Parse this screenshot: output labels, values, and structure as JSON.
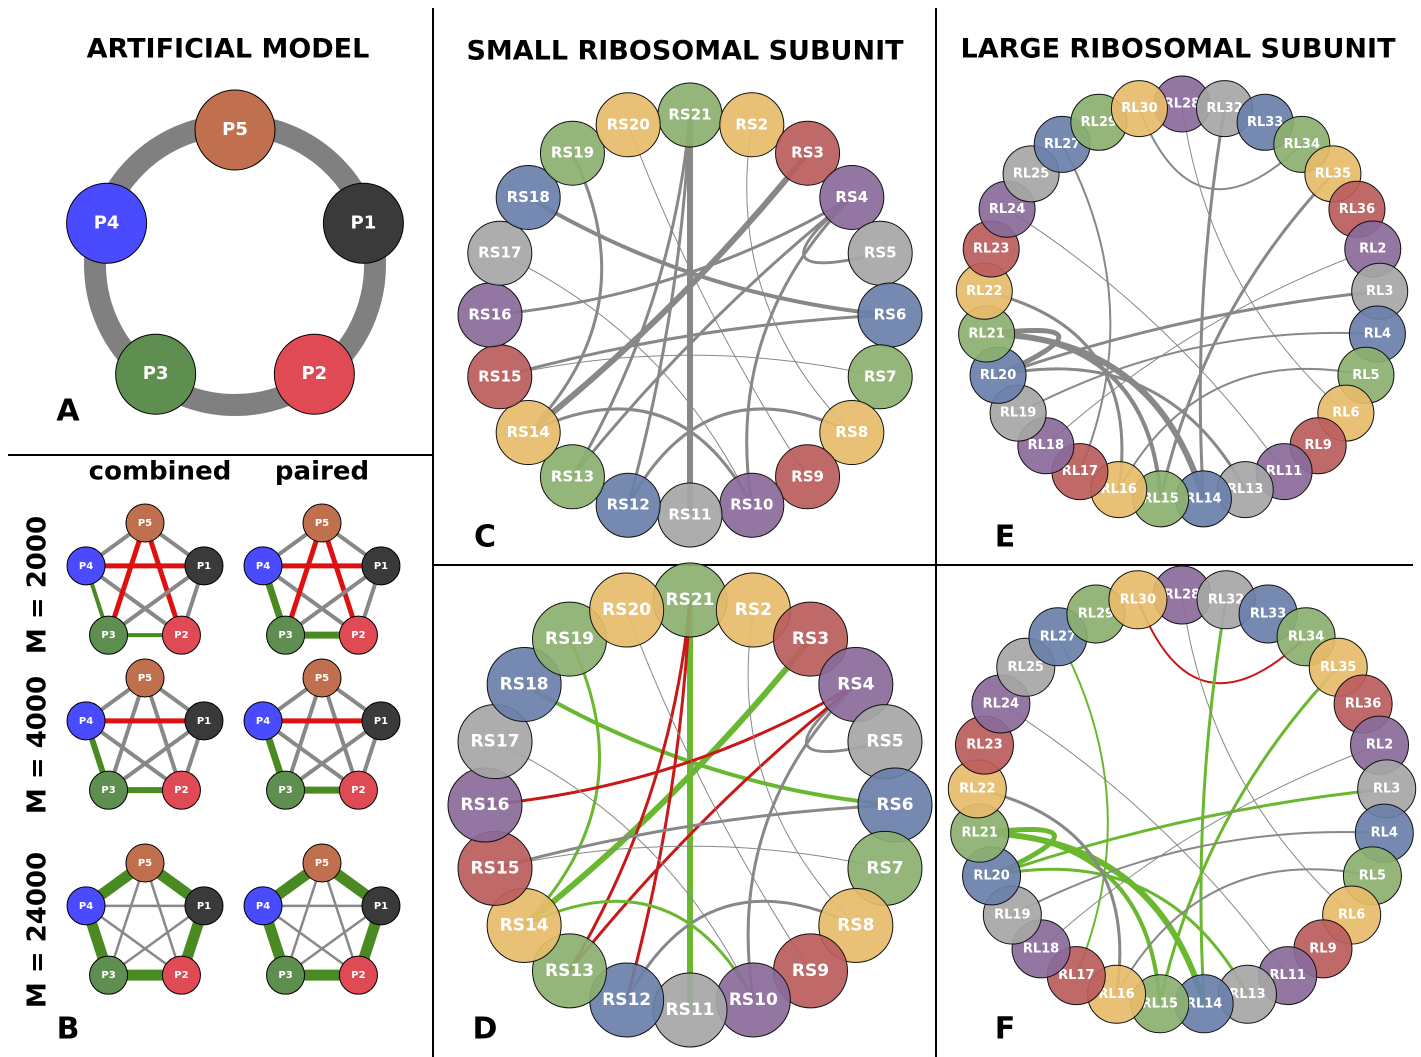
{
  "panel_a": {
    "title": "ARTIFICIAL MODEL",
    "label": "A",
    "nodes": [
      "P5",
      "P1",
      "P2",
      "P3",
      "P4"
    ]
  },
  "panel_b": {
    "label": "B",
    "columns": [
      "combined",
      "paired"
    ],
    "rows": [
      "M = 2000",
      "M = 4000",
      "M = 24000"
    ],
    "nodes": [
      "P5",
      "P1",
      "P2",
      "P3",
      "P4"
    ]
  },
  "small_subunit": {
    "title": "SMALL RIBOSOMAL SUBUNIT",
    "labels": [
      "C",
      "D"
    ],
    "nodes": [
      "RS21",
      "RS2",
      "RS3",
      "RS4",
      "RS5",
      "RS6",
      "RS7",
      "RS8",
      "RS9",
      "RS10",
      "RS11",
      "RS12",
      "RS13",
      "RS14",
      "RS15",
      "RS16",
      "RS17",
      "RS18",
      "RS19",
      "RS20"
    ]
  },
  "large_subunit": {
    "title": "LARGE RIBOSOMAL SUBUNIT",
    "labels": [
      "E",
      "F"
    ],
    "nodes": [
      "RL28",
      "RL32",
      "RL33",
      "RL34",
      "RL35",
      "RL36",
      "RL2",
      "RL3",
      "RL4",
      "RL5",
      "RL6",
      "RL9",
      "RL11",
      "RL13",
      "RL14",
      "RL15",
      "RL16",
      "RL17",
      "RL18",
      "RL19",
      "RL20",
      "RL21",
      "RL22",
      "RL23",
      "RL24",
      "RL25",
      "RL27",
      "RL29",
      "RL30"
    ]
  }
}
